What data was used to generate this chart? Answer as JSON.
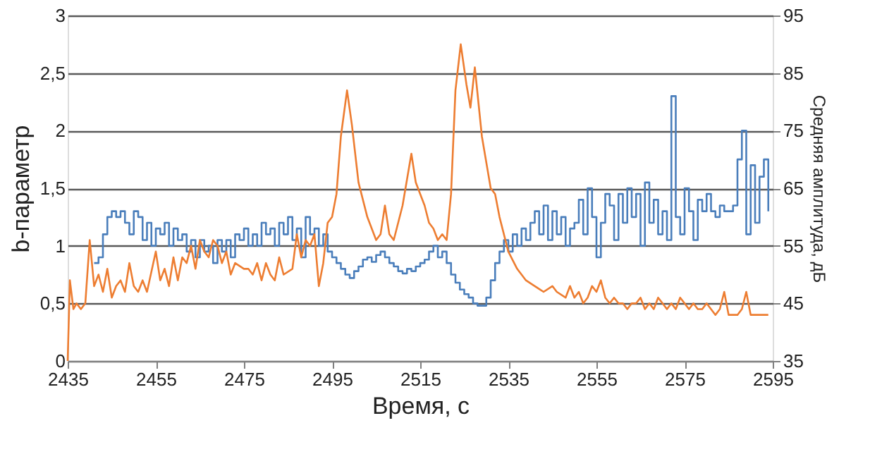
{
  "chart_data": {
    "type": "line",
    "xlabel": "Время, с",
    "ylabel": "b-параметр",
    "y2label": "Средняя амплитуда, дБ",
    "xlim": [
      2435,
      2595
    ],
    "xticks": [
      2435,
      2455,
      2475,
      2495,
      2515,
      2535,
      2555,
      2575,
      2595
    ],
    "ylim": [
      0,
      3
    ],
    "yticks": [
      0,
      {
        "value": 0.5,
        "label": "0,5"
      },
      1,
      {
        "value": 1.5,
        "label": "1,5"
      },
      2,
      {
        "value": 2.5,
        "label": "2,5"
      },
      3
    ],
    "y2lim": [
      35,
      95
    ],
    "y2ticks": [
      35,
      45,
      55,
      65,
      75,
      85,
      95
    ],
    "grid": "y",
    "series": [
      {
        "type": "step",
        "color": "#4a7ebb",
        "x": [
          2441,
          2442,
          2443,
          2444,
          2445,
          2446,
          2447,
          2448,
          2449,
          2450,
          2451,
          2452,
          2453,
          2454,
          2455,
          2456,
          2457,
          2458,
          2459,
          2460,
          2461,
          2462,
          2463,
          2464,
          2465,
          2466,
          2467,
          2468,
          2469,
          2470,
          2471,
          2472,
          2473,
          2474,
          2475,
          2476,
          2477,
          2478,
          2479,
          2480,
          2481,
          2482,
          2483,
          2484,
          2485,
          2486,
          2487,
          2488,
          2489,
          2490,
          2491,
          2492,
          2493,
          2494,
          2495,
          2496,
          2497,
          2498,
          2499,
          2500,
          2501,
          2502,
          2503,
          2504,
          2505,
          2506,
          2507,
          2508,
          2509,
          2510,
          2511,
          2512,
          2513,
          2514,
          2515,
          2516,
          2517,
          2518,
          2519,
          2520,
          2521,
          2522,
          2523,
          2524,
          2525,
          2526,
          2527,
          2528,
          2529,
          2530,
          2531,
          2532,
          2533,
          2534,
          2535,
          2536,
          2537,
          2538,
          2539,
          2540,
          2541,
          2542,
          2543,
          2544,
          2545,
          2546,
          2547,
          2548,
          2549,
          2550,
          2551,
          2552,
          2553,
          2554,
          2555,
          2556,
          2557,
          2558,
          2559,
          2560,
          2561,
          2562,
          2563,
          2564,
          2565,
          2566,
          2567,
          2568,
          2569,
          2570,
          2571,
          2572,
          2573,
          2574,
          2575,
          2576,
          2577,
          2578,
          2579,
          2580,
          2581,
          2582,
          2583,
          2584,
          2585,
          2586,
          2587,
          2588,
          2589,
          2590,
          2591,
          2592,
          2593,
          2594
        ],
        "values": [
          0.85,
          0.9,
          1.1,
          1.25,
          1.3,
          1.25,
          1.3,
          1.2,
          1.1,
          1.3,
          1.25,
          1.05,
          1.2,
          1.0,
          1.15,
          1.1,
          1.2,
          1.0,
          1.15,
          1.05,
          1.1,
          0.95,
          1.05,
          0.9,
          1.05,
          0.95,
          1.0,
          0.85,
          1.05,
          0.95,
          1.05,
          0.9,
          1.1,
          1.05,
          1.15,
          1.0,
          1.1,
          1.0,
          1.2,
          1.1,
          1.15,
          1.0,
          1.2,
          1.1,
          1.25,
          1.05,
          1.15,
          0.9,
          1.25,
          1.1,
          1.15,
          1.0,
          1.1,
          0.95,
          0.9,
          0.85,
          0.8,
          0.75,
          0.72,
          0.78,
          0.82,
          0.88,
          0.9,
          0.86,
          0.92,
          0.95,
          0.9,
          0.85,
          0.82,
          0.78,
          0.76,
          0.8,
          0.78,
          0.82,
          0.85,
          0.88,
          0.95,
          1.0,
          0.9,
          0.95,
          0.85,
          0.75,
          0.68,
          0.62,
          0.58,
          0.55,
          0.5,
          0.48,
          0.48,
          0.55,
          0.7,
          0.85,
          0.95,
          1.05,
          0.95,
          1.1,
          1.0,
          1.15,
          1.05,
          1.2,
          1.3,
          1.1,
          1.35,
          1.05,
          1.3,
          1.1,
          1.25,
          1.0,
          1.15,
          1.2,
          1.4,
          1.1,
          1.5,
          1.25,
          0.9,
          1.2,
          1.45,
          1.35,
          1.05,
          1.45,
          1.2,
          1.5,
          1.25,
          1.45,
          1.0,
          1.55,
          1.2,
          1.4,
          1.1,
          1.3,
          1.05,
          2.3,
          1.25,
          1.1,
          1.5,
          1.3,
          1.05,
          1.4,
          1.3,
          1.45,
          1.3,
          1.25,
          1.35,
          1.3,
          1.3,
          1.35,
          1.75,
          2.0,
          1.1,
          1.7,
          1.2,
          1.6,
          1.75,
          1.3
        ]
      },
      {
        "type": "line",
        "axis": "y2",
        "color": "#ed7d31",
        "x": [
          2435,
          2435.5,
          2436.3,
          2437,
          2438,
          2439,
          2440,
          2441,
          2442,
          2443,
          2444,
          2445,
          2446,
          2447,
          2448,
          2449,
          2450,
          2451,
          2452,
          2453,
          2455,
          2456,
          2457,
          2458,
          2459,
          2460,
          2461,
          2462,
          2463,
          2464,
          2465,
          2466,
          2467,
          2468,
          2469,
          2470,
          2471,
          2472,
          2473,
          2475,
          2476,
          2477,
          2478,
          2479,
          2480,
          2481,
          2482,
          2483,
          2484,
          2486,
          2487,
          2488,
          2489,
          2490,
          2491,
          2492,
          2493,
          2494,
          2495,
          2496,
          2497,
          2498.4,
          2499.5,
          2501,
          2503,
          2505,
          2506,
          2507,
          2508,
          2509,
          2511,
          2513,
          2514,
          2515,
          2516,
          2517,
          2518,
          2519,
          2520,
          2521,
          2522,
          2523,
          2524.2,
          2525.5,
          2526.4,
          2527.4,
          2529,
          2531,
          2532,
          2533,
          2535,
          2537,
          2539,
          2541,
          2543,
          2545,
          2546,
          2548,
          2549,
          2550,
          2551,
          2552,
          2553,
          2554,
          2555,
          2556,
          2557,
          2558,
          2559,
          2560,
          2561,
          2562,
          2563,
          2564,
          2565,
          2566,
          2567,
          2568,
          2569,
          2570,
          2571,
          2572,
          2573,
          2574,
          2575,
          2576,
          2577,
          2578,
          2579,
          2580,
          2581,
          2582,
          2583,
          2584,
          2585,
          2586,
          2587,
          2588,
          2589,
          2590,
          2591,
          2592,
          2593,
          2594
        ],
        "values": [
          35,
          49,
          44,
          45,
          44,
          45,
          56,
          48,
          50,
          47,
          51,
          46,
          48,
          49,
          47,
          52,
          48,
          47,
          49,
          47,
          54,
          49,
          51,
          48,
          53,
          49,
          53,
          52,
          55,
          51,
          56,
          54,
          53,
          56,
          55,
          52,
          54,
          50,
          52,
          51,
          51,
          50,
          52,
          49,
          52,
          50,
          49,
          53,
          50,
          51,
          57,
          53,
          56,
          55,
          57,
          48,
          52,
          59,
          60,
          64,
          74,
          82,
          76,
          66,
          60,
          56,
          57,
          62,
          57,
          56,
          62,
          71,
          66,
          64,
          62,
          59,
          58,
          56,
          57,
          56,
          64,
          82,
          90,
          83,
          79,
          86,
          74,
          65,
          64,
          60,
          54,
          51,
          49,
          48,
          47,
          48,
          47,
          46,
          48,
          46,
          47,
          45,
          46,
          48,
          47,
          49,
          46,
          45,
          46,
          45,
          45,
          44,
          45,
          45,
          46,
          44,
          45,
          44,
          46,
          45,
          44,
          45,
          44,
          46,
          45,
          44,
          45,
          44,
          44,
          45,
          44,
          43,
          44,
          47,
          43,
          43,
          43,
          44,
          47,
          43,
          43,
          43,
          43,
          43
        ]
      }
    ]
  }
}
